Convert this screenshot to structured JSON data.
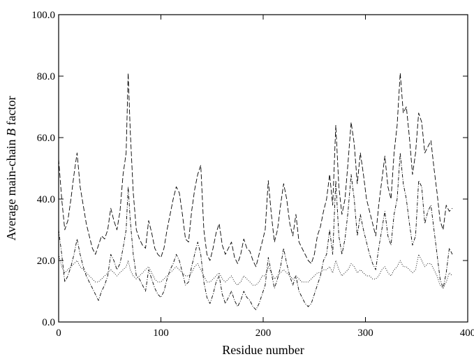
{
  "chart_data": {
    "type": "line",
    "xlabel": "Residue number",
    "ylabel": "Average main-chain B factor",
    "ylabel_parts": [
      "Average main-chain ",
      "B",
      " factor"
    ],
    "xlim": [
      0,
      400
    ],
    "ylim": [
      0,
      100
    ],
    "x_ticks": [
      "0",
      "100",
      "200",
      "300",
      "400"
    ],
    "y_ticks": [
      "0.0",
      "20.0",
      "40.0",
      "60.0",
      "80.0",
      "100.0"
    ],
    "grid": false,
    "legend": "none",
    "series": [
      {
        "style": "dashed",
        "color": "#000000",
        "x": [
          0,
          3,
          6,
          9,
          12,
          15,
          18,
          21,
          24,
          27,
          30,
          33,
          36,
          39,
          42,
          45,
          48,
          51,
          54,
          57,
          60,
          63,
          66,
          68,
          70,
          73,
          76,
          79,
          82,
          85,
          88,
          91,
          94,
          97,
          100,
          103,
          106,
          109,
          112,
          115,
          118,
          121,
          124,
          127,
          130,
          133,
          136,
          139,
          142,
          145,
          148,
          151,
          154,
          157,
          160,
          163,
          166,
          169,
          172,
          175,
          178,
          181,
          184,
          187,
          190,
          193,
          196,
          199,
          202,
          205,
          208,
          211,
          214,
          217,
          220,
          223,
          226,
          229,
          232,
          235,
          238,
          241,
          244,
          247,
          250,
          253,
          256,
          259,
          262,
          265,
          268,
          271,
          274,
          277,
          280,
          283,
          286,
          289,
          292,
          295,
          298,
          301,
          304,
          307,
          310,
          313,
          316,
          319,
          322,
          325,
          328,
          331,
          334,
          337,
          340,
          343,
          346,
          349,
          352,
          355,
          358,
          361,
          364,
          367,
          370,
          373,
          376,
          379,
          382,
          385
        ],
        "y": [
          53,
          40,
          30,
          33,
          40,
          48,
          55,
          44,
          38,
          32,
          28,
          24,
          22,
          25,
          28,
          27,
          30,
          37,
          33,
          30,
          36,
          48,
          55,
          81,
          62,
          42,
          30,
          27,
          25,
          24,
          33,
          29,
          24,
          22,
          21,
          24,
          30,
          35,
          40,
          44,
          42,
          35,
          27,
          26,
          36,
          43,
          48,
          51,
          30,
          22,
          20,
          24,
          29,
          32,
          25,
          22,
          24,
          26,
          21,
          19,
          22,
          27,
          24,
          23,
          20,
          18,
          22,
          26,
          30,
          46,
          35,
          26,
          30,
          38,
          45,
          40,
          32,
          28,
          35,
          26,
          24,
          22,
          20,
          19,
          22,
          28,
          31,
          36,
          40,
          48,
          38,
          64,
          44,
          35,
          40,
          52,
          65,
          58,
          45,
          55,
          48,
          40,
          36,
          32,
          28,
          38,
          46,
          54,
          44,
          40,
          55,
          64,
          81,
          68,
          70,
          60,
          48,
          55,
          68,
          65,
          55,
          57,
          59,
          50,
          42,
          33,
          30,
          38,
          36,
          37
        ]
      },
      {
        "style": "dash-dot",
        "color": "#000000",
        "x": [
          0,
          3,
          6,
          9,
          12,
          15,
          18,
          21,
          24,
          27,
          30,
          33,
          36,
          39,
          42,
          45,
          48,
          51,
          54,
          57,
          60,
          63,
          66,
          68,
          70,
          73,
          76,
          79,
          82,
          85,
          88,
          91,
          94,
          97,
          100,
          103,
          106,
          109,
          112,
          115,
          118,
          121,
          124,
          127,
          130,
          133,
          136,
          139,
          142,
          145,
          148,
          151,
          154,
          157,
          160,
          163,
          166,
          169,
          172,
          175,
          178,
          181,
          184,
          187,
          190,
          193,
          196,
          199,
          202,
          205,
          208,
          211,
          214,
          217,
          220,
          223,
          226,
          229,
          232,
          235,
          238,
          241,
          244,
          247,
          250,
          253,
          256,
          259,
          262,
          265,
          268,
          271,
          274,
          277,
          280,
          283,
          286,
          289,
          292,
          295,
          298,
          301,
          304,
          307,
          310,
          313,
          316,
          319,
          322,
          325,
          328,
          331,
          334,
          337,
          340,
          343,
          346,
          349,
          352,
          355,
          358,
          361,
          364,
          367,
          370,
          373,
          376,
          379,
          382,
          385
        ],
        "y": [
          30,
          22,
          13,
          15,
          18,
          22,
          27,
          22,
          18,
          15,
          13,
          11,
          9,
          7,
          10,
          12,
          15,
          22,
          20,
          17,
          19,
          24,
          30,
          44,
          33,
          22,
          15,
          14,
          12,
          10,
          17,
          14,
          11,
          9,
          8,
          10,
          14,
          17,
          19,
          22,
          20,
          16,
          12,
          13,
          18,
          22,
          26,
          22,
          13,
          8,
          6,
          9,
          13,
          15,
          9,
          6,
          8,
          10,
          7,
          5,
          7,
          10,
          8,
          7,
          5,
          4,
          6,
          9,
          12,
          21,
          16,
          11,
          14,
          18,
          24,
          19,
          15,
          12,
          15,
          10,
          8,
          6,
          5,
          6,
          9,
          12,
          15,
          20,
          22,
          30,
          22,
          46,
          28,
          22,
          27,
          36,
          48,
          40,
          28,
          35,
          30,
          26,
          22,
          19,
          17,
          24,
          30,
          36,
          28,
          25,
          35,
          40,
          55,
          45,
          40,
          32,
          25,
          28,
          46,
          44,
          32,
          36,
          38,
          30,
          22,
          14,
          11,
          16,
          24,
          22
        ]
      },
      {
        "style": "dotted",
        "color": "#000000",
        "x": [
          0,
          3,
          6,
          9,
          12,
          15,
          18,
          21,
          24,
          27,
          30,
          33,
          36,
          39,
          42,
          45,
          48,
          51,
          54,
          57,
          60,
          63,
          66,
          68,
          70,
          73,
          76,
          79,
          82,
          85,
          88,
          91,
          94,
          97,
          100,
          103,
          106,
          109,
          112,
          115,
          118,
          121,
          124,
          127,
          130,
          133,
          136,
          139,
          142,
          145,
          148,
          151,
          154,
          157,
          160,
          163,
          166,
          169,
          172,
          175,
          178,
          181,
          184,
          187,
          190,
          193,
          196,
          199,
          202,
          205,
          208,
          211,
          214,
          217,
          220,
          223,
          226,
          229,
          232,
          235,
          238,
          241,
          244,
          247,
          250,
          253,
          256,
          259,
          262,
          265,
          268,
          271,
          274,
          277,
          280,
          283,
          286,
          289,
          292,
          295,
          298,
          301,
          304,
          307,
          310,
          313,
          316,
          319,
          322,
          325,
          328,
          331,
          334,
          337,
          340,
          343,
          346,
          349,
          352,
          355,
          358,
          361,
          364,
          367,
          370,
          373,
          376,
          379,
          382,
          385
        ],
        "y": [
          22,
          18,
          16,
          17,
          18,
          19,
          20,
          18,
          17,
          16,
          15,
          14,
          13,
          13,
          14,
          15,
          16,
          17,
          16,
          15,
          16,
          17,
          18,
          20,
          17,
          15,
          14,
          15,
          16,
          17,
          18,
          16,
          14,
          13,
          13,
          14,
          15,
          16,
          17,
          18,
          17,
          16,
          15,
          15,
          16,
          18,
          19,
          17,
          15,
          13,
          13,
          14,
          15,
          16,
          14,
          13,
          14,
          15,
          13,
          12,
          13,
          15,
          14,
          13,
          12,
          12,
          13,
          15,
          15,
          18,
          16,
          14,
          15,
          16,
          17,
          16,
          15,
          14,
          15,
          14,
          13,
          13,
          13,
          14,
          15,
          16,
          16,
          17,
          17,
          18,
          16,
          20,
          17,
          15,
          16,
          17,
          19,
          18,
          16,
          17,
          16,
          15,
          15,
          14,
          14,
          15,
          17,
          18,
          16,
          15,
          17,
          18,
          20,
          18,
          18,
          17,
          16,
          17,
          22,
          20,
          18,
          19,
          19,
          17,
          15,
          12,
          11,
          13,
          16,
          15
        ]
      }
    ]
  }
}
